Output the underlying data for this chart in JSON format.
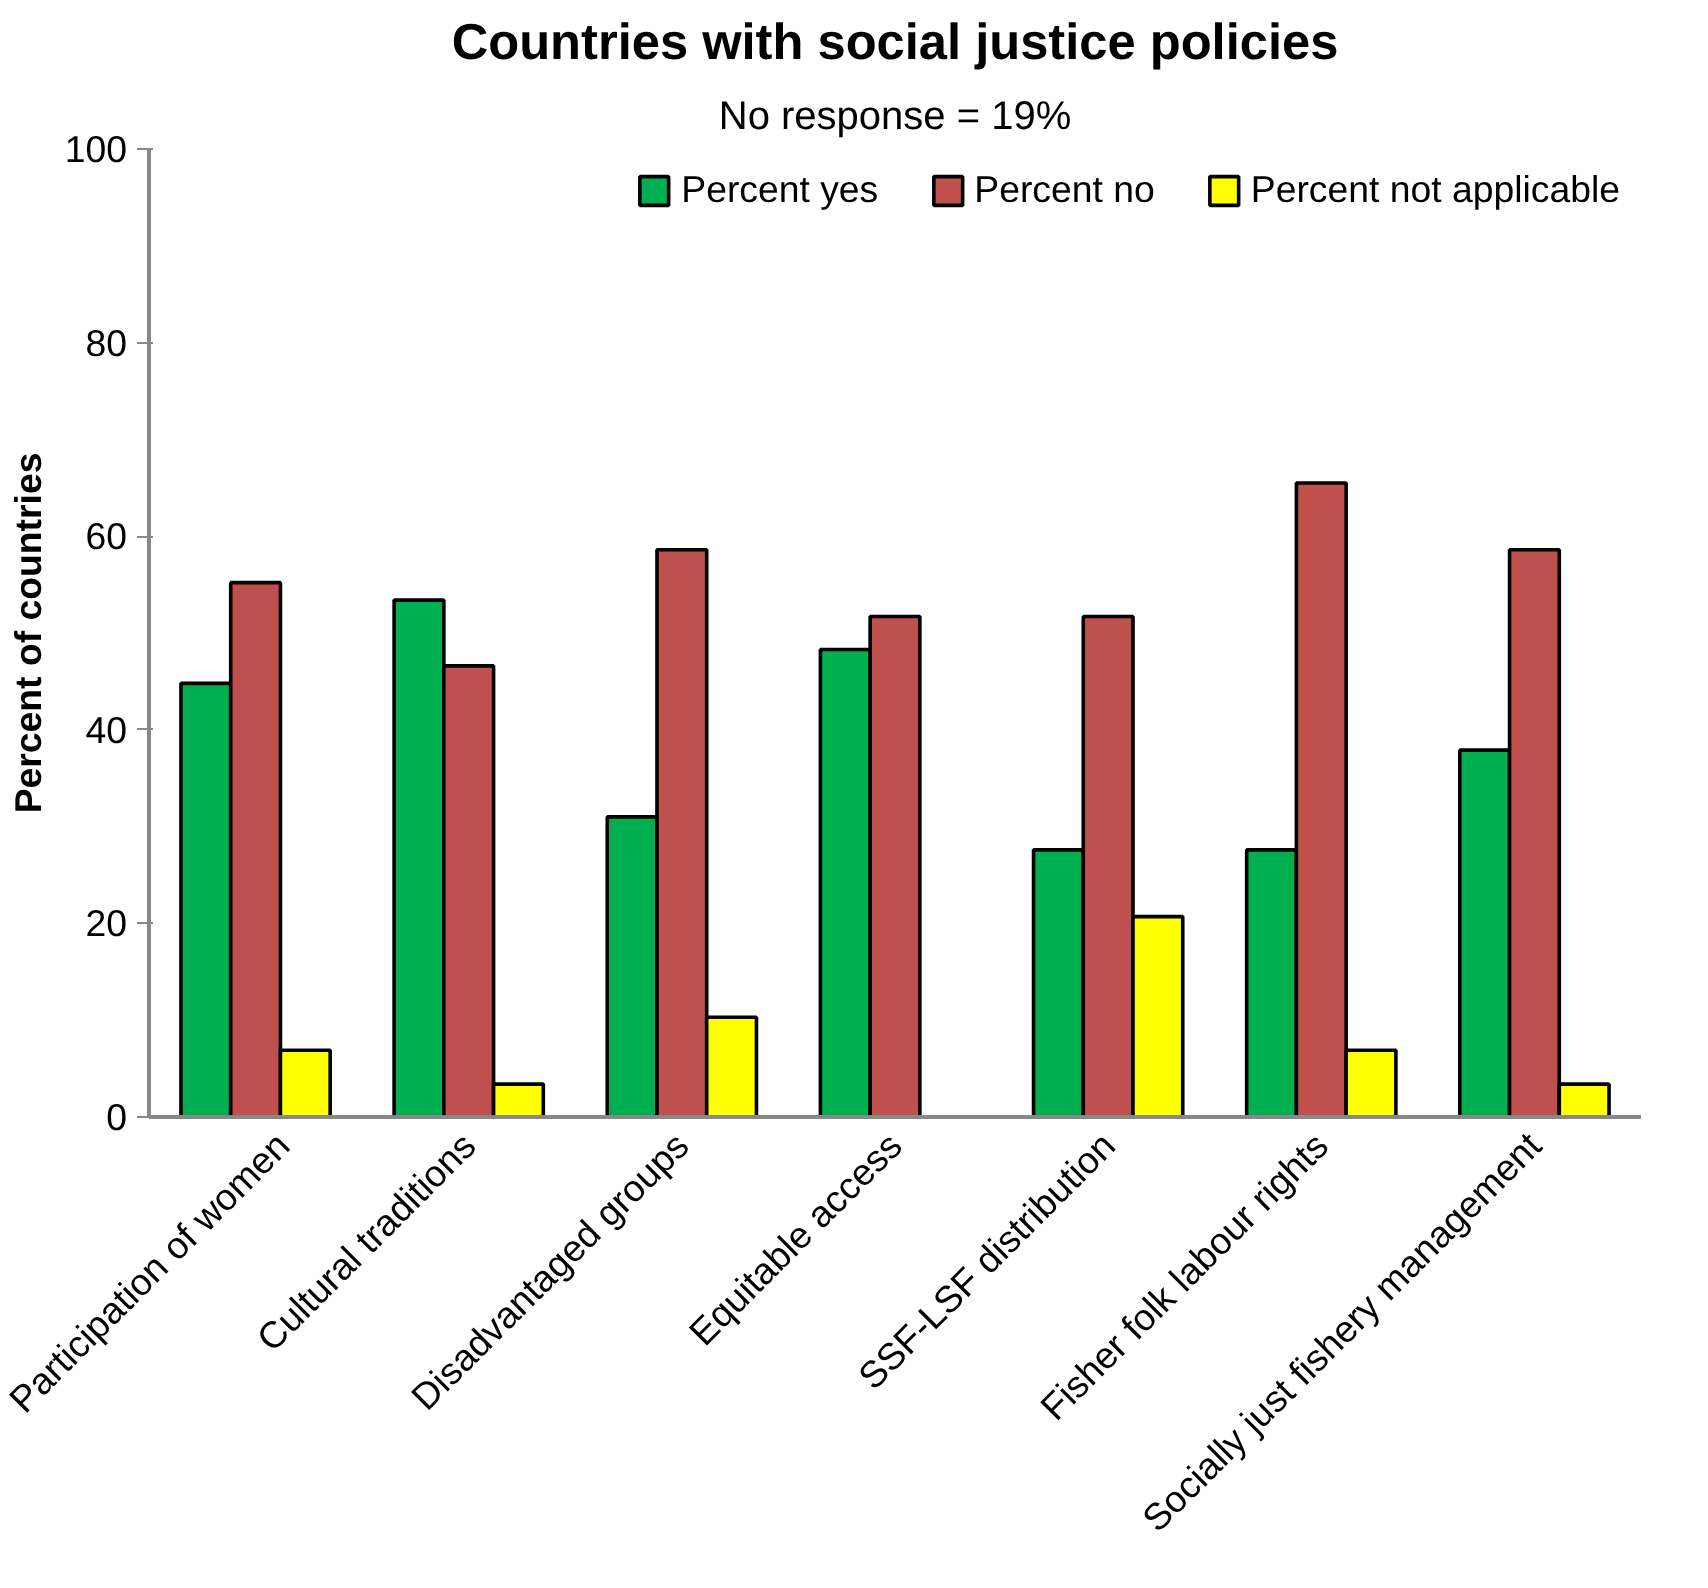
{
  "chart_data": {
    "type": "bar",
    "title": "Countries with social justice policies",
    "subtitle": "No response = 19%",
    "ylabel": "Percent of countries",
    "categories": [
      "Participation of women",
      "Cultural traditions",
      "Disadvantaged groups",
      "Equitable access",
      "SSF-LSF distribution",
      "Fisher folk labour rights",
      "Socially just fishery management"
    ],
    "series": [
      {
        "name": "Percent yes",
        "color": "#00b050",
        "values": [
          44.8,
          53.4,
          31.0,
          48.3,
          27.6,
          27.6,
          37.9
        ]
      },
      {
        "name": "Percent no",
        "color": "#c0504d",
        "values": [
          55.2,
          46.6,
          58.6,
          51.7,
          51.7,
          65.5,
          58.6
        ]
      },
      {
        "name": "Percent not applicable",
        "color": "#ffff00",
        "values": [
          6.9,
          3.4,
          10.3,
          null,
          20.7,
          6.9,
          3.4
        ]
      }
    ],
    "ylim": [
      0,
      100
    ],
    "yticks": [
      0,
      20,
      40,
      60,
      80,
      100
    ],
    "grid": false,
    "legend": "top right"
  }
}
